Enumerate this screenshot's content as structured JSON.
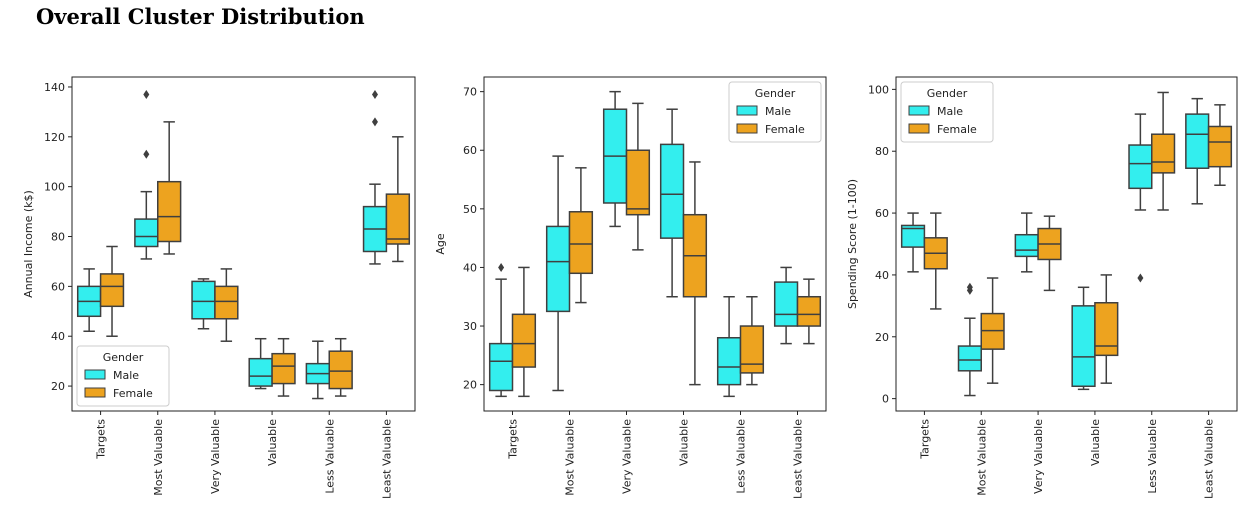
{
  "title": "Overall Cluster Distribution",
  "colors": {
    "male": "#33eeee",
    "female": "#eda31f",
    "line": "#3f3f3f"
  },
  "chart_data": [
    {
      "type": "box",
      "id": "income",
      "ylabel": "Annual Income (k$)",
      "xlabel": "",
      "ylim": [
        10,
        144
      ],
      "yticks": [
        20,
        40,
        60,
        80,
        100,
        120,
        140
      ],
      "categories": [
        "Targets",
        "Most Valuable",
        "Very Valuable",
        "Valuable",
        "Less Valuable",
        "Least Valuable"
      ],
      "legend": {
        "title": "Gender",
        "labels": [
          "Male",
          "Female"
        ],
        "position": "lower-left"
      },
      "series": [
        {
          "name": "Male",
          "boxes": [
            {
              "min": 42,
              "q1": 48,
              "median": 54,
              "q3": 60,
              "max": 67,
              "outliers": []
            },
            {
              "min": 71,
              "q1": 76,
              "median": 80,
              "q3": 87,
              "max": 98,
              "outliers": [
                113,
                137
              ]
            },
            {
              "min": 43,
              "q1": 47,
              "median": 54,
              "q3": 62,
              "max": 63,
              "outliers": []
            },
            {
              "min": 19,
              "q1": 20,
              "median": 24,
              "q3": 31,
              "max": 39,
              "outliers": []
            },
            {
              "min": 15,
              "q1": 21,
              "median": 25,
              "q3": 29,
              "max": 38,
              "outliers": []
            },
            {
              "min": 69,
              "q1": 74,
              "median": 83,
              "q3": 92,
              "max": 101,
              "outliers": [
                126,
                137
              ]
            }
          ]
        },
        {
          "name": "Female",
          "boxes": [
            {
              "min": 40,
              "q1": 52,
              "median": 60,
              "q3": 65,
              "max": 76,
              "outliers": []
            },
            {
              "min": 73,
              "q1": 78,
              "median": 88,
              "q3": 102,
              "max": 126,
              "outliers": []
            },
            {
              "min": 38,
              "q1": 47,
              "median": 54,
              "q3": 60,
              "max": 67,
              "outliers": []
            },
            {
              "min": 16,
              "q1": 21,
              "median": 28,
              "q3": 33,
              "max": 39,
              "outliers": []
            },
            {
              "min": 16,
              "q1": 19,
              "median": 26,
              "q3": 34,
              "max": 39,
              "outliers": []
            },
            {
              "min": 70,
              "q1": 77,
              "median": 79,
              "q3": 97,
              "max": 120,
              "outliers": []
            }
          ]
        }
      ]
    },
    {
      "type": "box",
      "id": "age",
      "ylabel": "Age",
      "xlabel": "",
      "ylim": [
        15.5,
        72.5
      ],
      "yticks": [
        20,
        30,
        40,
        50,
        60,
        70
      ],
      "categories": [
        "Targets",
        "Most Valuable",
        "Very Valuable",
        "Valuable",
        "Less Valuable",
        "Least Valuable"
      ],
      "legend": {
        "title": "Gender",
        "labels": [
          "Male",
          "Female"
        ],
        "position": "top-right"
      },
      "series": [
        {
          "name": "Male",
          "boxes": [
            {
              "min": 18,
              "q1": 19,
              "median": 24,
              "q3": 27,
              "max": 38,
              "outliers": [
                40
              ]
            },
            {
              "min": 19,
              "q1": 32.5,
              "median": 41,
              "q3": 47,
              "max": 59,
              "outliers": []
            },
            {
              "min": 47,
              "q1": 51,
              "median": 59,
              "q3": 67,
              "max": 70,
              "outliers": []
            },
            {
              "min": 35,
              "q1": 45,
              "median": 52.5,
              "q3": 61,
              "max": 67,
              "outliers": []
            },
            {
              "min": 18,
              "q1": 20,
              "median": 23,
              "q3": 28,
              "max": 35,
              "outliers": []
            },
            {
              "min": 27,
              "q1": 30,
              "median": 32,
              "q3": 37.5,
              "max": 40,
              "outliers": []
            }
          ]
        },
        {
          "name": "Female",
          "boxes": [
            {
              "min": 18,
              "q1": 23,
              "median": 27,
              "q3": 32,
              "max": 40,
              "outliers": []
            },
            {
              "min": 34,
              "q1": 39,
              "median": 44,
              "q3": 49.5,
              "max": 57,
              "outliers": []
            },
            {
              "min": 43,
              "q1": 49,
              "median": 50,
              "q3": 60,
              "max": 68,
              "outliers": []
            },
            {
              "min": 20,
              "q1": 35,
              "median": 42,
              "q3": 49,
              "max": 58,
              "outliers": []
            },
            {
              "min": 20,
              "q1": 22,
              "median": 23.5,
              "q3": 30,
              "max": 35,
              "outliers": []
            },
            {
              "min": 27,
              "q1": 30,
              "median": 32,
              "q3": 35,
              "max": 38,
              "outliers": []
            }
          ]
        }
      ]
    },
    {
      "type": "box",
      "id": "spending",
      "ylabel": "Spending Score (1-100)",
      "xlabel": "",
      "ylim": [
        -4,
        104
      ],
      "yticks": [
        0,
        20,
        40,
        60,
        80,
        100
      ],
      "categories": [
        "Targets",
        "Most Valuable",
        "Very Valuable",
        "Valuable",
        "Less Valuable",
        "Least Valuable"
      ],
      "legend": {
        "title": "Gender",
        "labels": [
          "Male",
          "Female"
        ],
        "position": "top-left"
      },
      "series": [
        {
          "name": "Male",
          "boxes": [
            {
              "min": 41,
              "q1": 49,
              "median": 55,
              "q3": 56,
              "max": 60,
              "outliers": []
            },
            {
              "min": 1,
              "q1": 9,
              "median": 12.5,
              "q3": 17,
              "max": 26,
              "outliers": [
                35,
                36
              ]
            },
            {
              "min": 41,
              "q1": 46,
              "median": 48,
              "q3": 53,
              "max": 60,
              "outliers": []
            },
            {
              "min": 3,
              "q1": 4,
              "median": 13.5,
              "q3": 30,
              "max": 36,
              "outliers": []
            },
            {
              "min": 61,
              "q1": 68,
              "median": 76,
              "q3": 82,
              "max": 92,
              "outliers": [
                39
              ]
            },
            {
              "min": 63,
              "q1": 74.5,
              "median": 85.5,
              "q3": 92,
              "max": 97,
              "outliers": []
            }
          ]
        },
        {
          "name": "Female",
          "boxes": [
            {
              "min": 29,
              "q1": 42,
              "median": 47,
              "q3": 52,
              "max": 60,
              "outliers": []
            },
            {
              "min": 5,
              "q1": 16,
              "median": 22,
              "q3": 27.5,
              "max": 39,
              "outliers": []
            },
            {
              "min": 35,
              "q1": 45,
              "median": 50,
              "q3": 55,
              "max": 59,
              "outliers": []
            },
            {
              "min": 5,
              "q1": 14,
              "median": 17,
              "q3": 31,
              "max": 40,
              "outliers": []
            },
            {
              "min": 61,
              "q1": 73,
              "median": 76.5,
              "q3": 85.5,
              "max": 99,
              "outliers": []
            },
            {
              "min": 69,
              "q1": 75,
              "median": 83,
              "q3": 88,
              "max": 95,
              "outliers": []
            }
          ]
        }
      ]
    }
  ]
}
